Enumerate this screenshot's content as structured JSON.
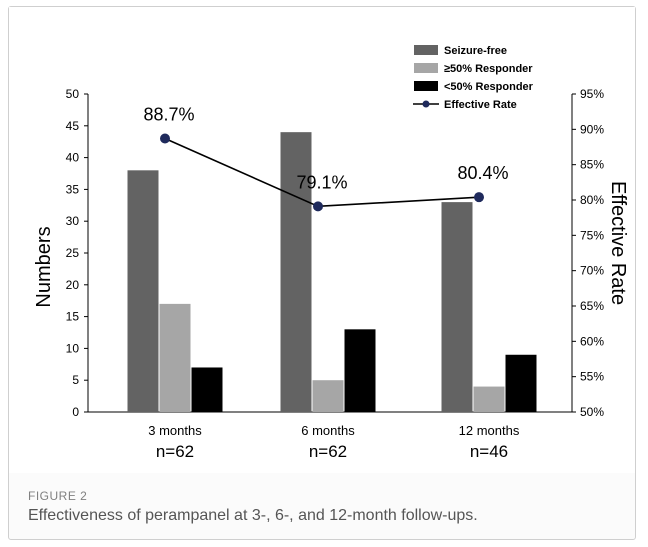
{
  "figure": {
    "label": "FIGURE 2",
    "caption": "Effectiveness of perampanel at 3-, 6-, and 12-month follow-ups."
  },
  "chart_data": {
    "type": "bar",
    "title": "",
    "categories": [
      "3 months",
      "6 months",
      "12 months"
    ],
    "category_sublabels": [
      "n=62",
      "n=62",
      "n=46"
    ],
    "xlabel": "",
    "ylabel": "Numbers",
    "ylim": [
      0,
      50
    ],
    "yticks": [
      "0",
      "5",
      "10",
      "15",
      "20",
      "25",
      "30",
      "35",
      "40",
      "45",
      "50"
    ],
    "y2label": "Effective Rate",
    "y2lim": [
      50,
      95
    ],
    "y2ticks": [
      "50%",
      "55%",
      "60%",
      "65%",
      "70%",
      "75%",
      "80%",
      "85%",
      "90%",
      "95%"
    ],
    "series": [
      {
        "name": "Seizure-free",
        "kind": "bar",
        "color": "#636363",
        "values": [
          38,
          44,
          33
        ]
      },
      {
        "name": "≥50% Responder",
        "kind": "bar",
        "color": "#a6a6a6",
        "values": [
          17,
          5,
          4
        ]
      },
      {
        "name": "<50% Responder",
        "kind": "bar",
        "color": "#000000",
        "values": [
          7,
          13,
          9
        ]
      },
      {
        "name": "Effective Rate",
        "kind": "line",
        "axis": "right",
        "color": "#1f2a5c",
        "values": [
          88.7,
          79.1,
          80.4
        ],
        "labels": [
          "88.7%",
          "79.1%",
          "80.4%"
        ]
      }
    ],
    "legend_position": "top-right",
    "grid": false
  }
}
